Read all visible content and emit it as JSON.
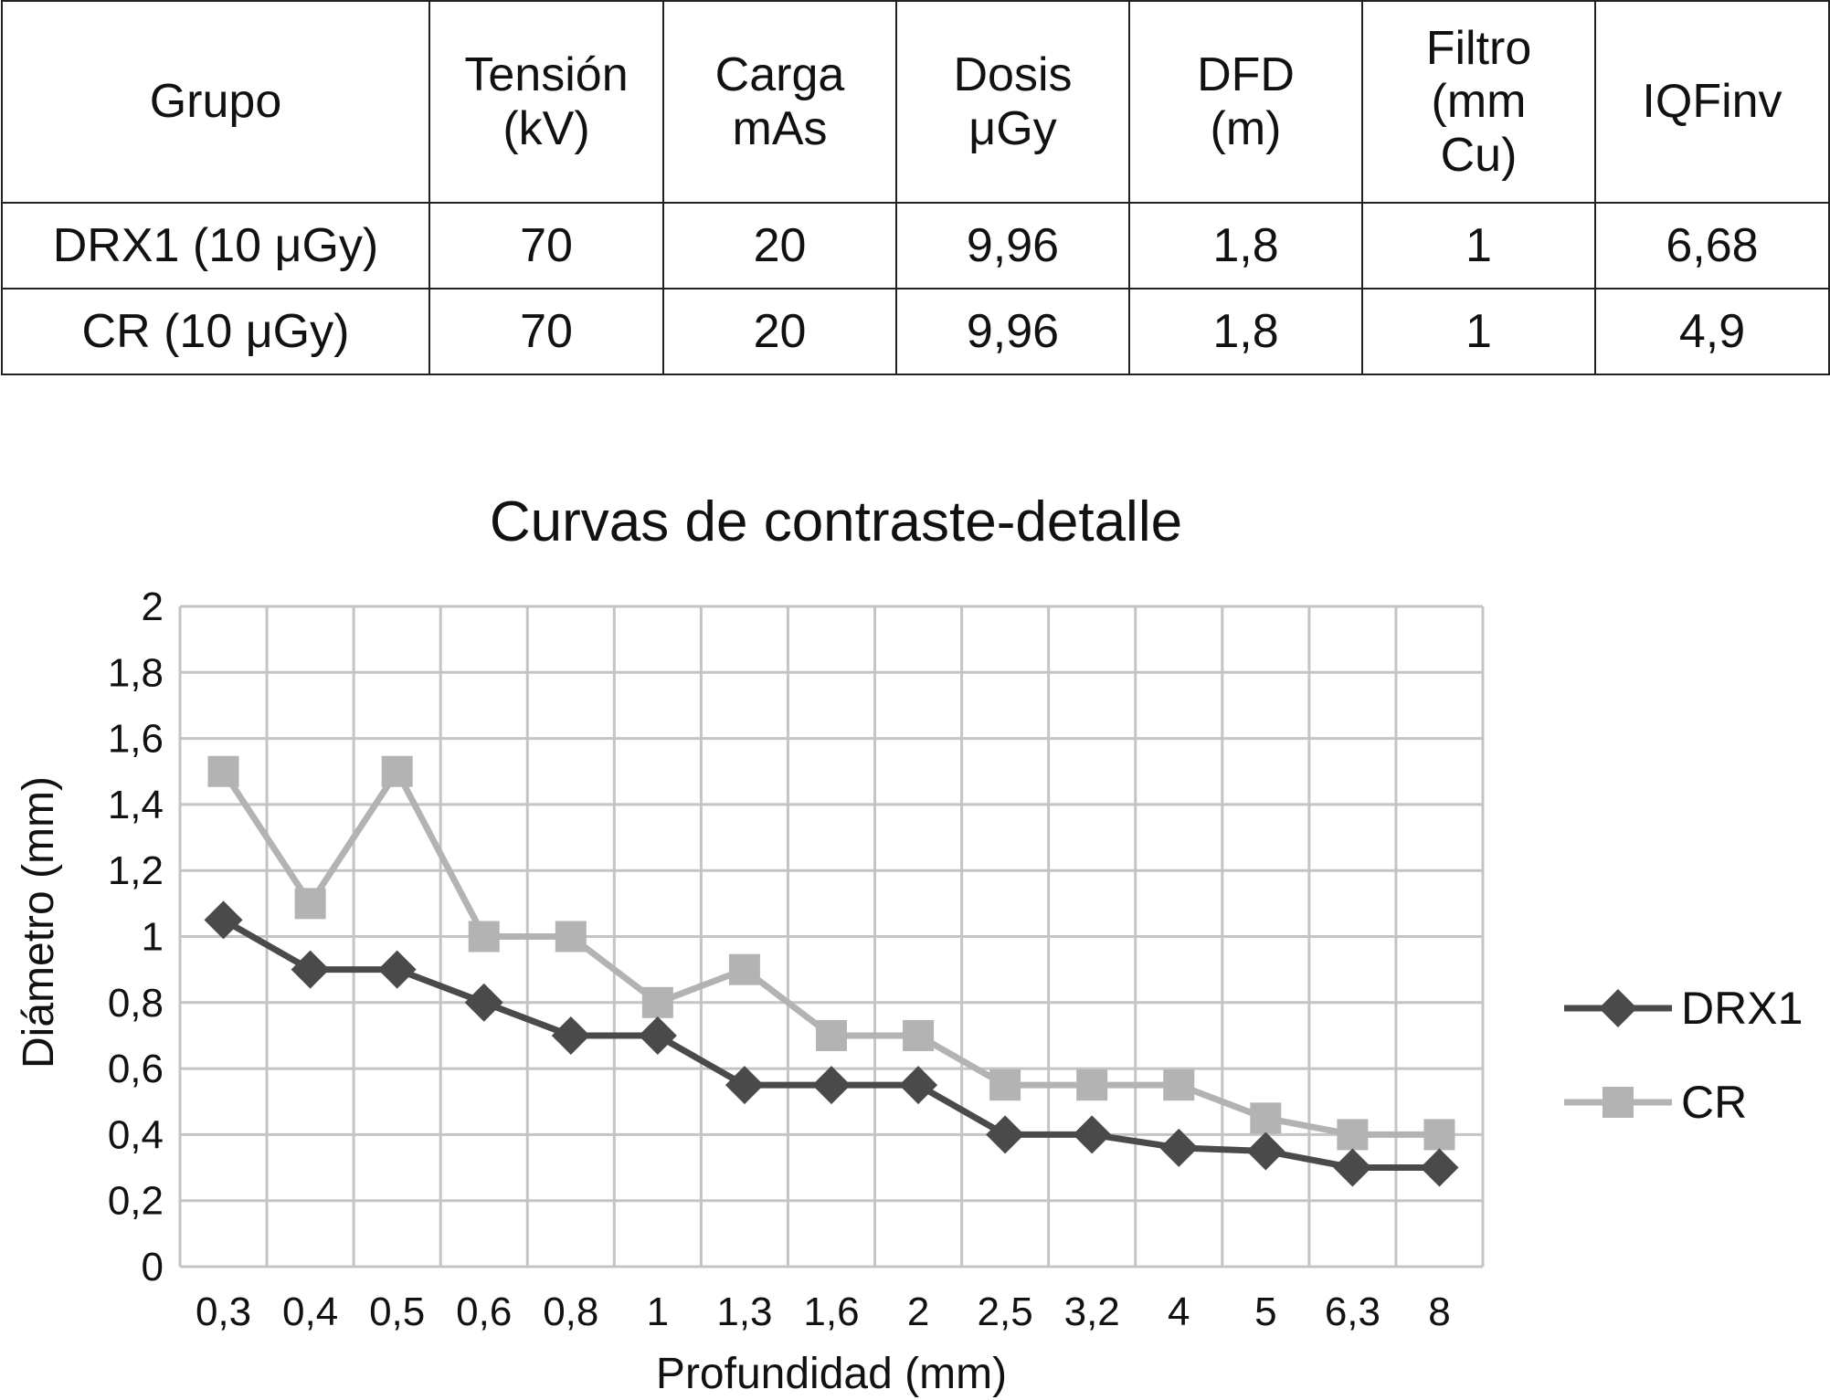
{
  "table": {
    "headers": [
      "Grupo",
      "Tensión\n(kV)",
      "Carga\nmAs",
      "Dosis\nμGy",
      "DFD\n(m)",
      "Filtro\n(mm\nCu)",
      "IQFinv"
    ],
    "rows": [
      [
        "DRX1 (10 μGy)",
        "70",
        "20",
        "9,96",
        "1,8",
        "1",
        "6,68"
      ],
      [
        "CR (10 μGy)",
        "70",
        "20",
        "9,96",
        "1,8",
        "1",
        "4,9"
      ]
    ]
  },
  "chart_data": {
    "type": "line",
    "title": "Curvas de contraste-detalle",
    "xlabel": "Profundidad (mm)",
    "ylabel": "Diámetro (mm)",
    "categories": [
      "0,3",
      "0,4",
      "0,5",
      "0,6",
      "0,8",
      "1",
      "1,3",
      "1,6",
      "2",
      "2,5",
      "3,2",
      "4",
      "5",
      "6,3",
      "8"
    ],
    "y_ticks": [
      "0",
      "0,2",
      "0,4",
      "0,6",
      "0,8",
      "1",
      "1,2",
      "1,4",
      "1,6",
      "1,8",
      "2"
    ],
    "ylim": [
      0,
      2
    ],
    "grid": true,
    "legend_position": "right",
    "series": [
      {
        "name": "DRX1",
        "marker": "diamond",
        "color": "#4a4a4a",
        "values": [
          1.05,
          0.9,
          0.9,
          0.8,
          0.7,
          0.7,
          0.55,
          0.55,
          0.55,
          0.4,
          0.4,
          0.36,
          0.35,
          0.3,
          0.3
        ]
      },
      {
        "name": "CR",
        "marker": "square",
        "color": "#b3b3b3",
        "values": [
          1.5,
          1.1,
          1.5,
          1.0,
          1.0,
          0.8,
          0.9,
          0.7,
          0.7,
          0.55,
          0.55,
          0.55,
          0.45,
          0.4,
          0.4
        ]
      }
    ]
  }
}
